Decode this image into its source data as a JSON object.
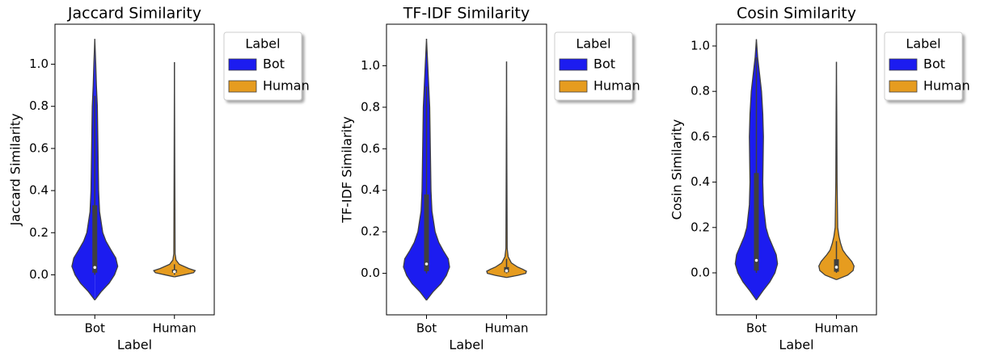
{
  "chart_data": [
    {
      "type": "violin",
      "title": "Jaccard Similarity",
      "x_label": "Label",
      "y_label": "Jaccard Similarity",
      "legend_title": "Label",
      "categories": [
        "Bot",
        "Human"
      ],
      "ylim": [
        -0.19,
        1.19
      ],
      "yticks": [
        {
          "value": 0,
          "label": "0.0"
        },
        0.2,
        0.4,
        0.6,
        0.8,
        {
          "value": 1,
          "label": "1.0"
        }
      ],
      "series": [
        {
          "name": "Bot",
          "color": "#1c1cf0",
          "kde_y": [
            -0.12,
            -0.08,
            -0.04,
            0,
            0.04,
            0.08,
            0.12,
            0.16,
            0.2,
            0.3,
            0.4,
            0.5,
            0.6,
            0.7,
            0.8,
            0.9,
            1.0,
            1.12
          ],
          "kde_width": [
            0,
            0.2,
            0.45,
            0.62,
            0.72,
            0.66,
            0.5,
            0.35,
            0.25,
            0.15,
            0.12,
            0.11,
            0.1,
            0.09,
            0.08,
            0.05,
            0.03,
            0
          ],
          "stats": {
            "whisker_low": 0,
            "q1": 0.01,
            "median": 0.035,
            "q3": 0.33,
            "whisker_high": 0.85
          }
        },
        {
          "name": "Human",
          "color": "#e69c1f",
          "kde_y": [
            -0.01,
            0,
            0.01,
            0.02,
            0.03,
            0.05,
            0.07,
            0.1,
            0.5,
            1.01
          ],
          "kde_width": [
            0,
            0.3,
            0.6,
            0.65,
            0.45,
            0.15,
            0.05,
            0.02,
            0.01,
            0
          ],
          "stats": {
            "whisker_low": 0,
            "q1": 0.01,
            "median": 0.015,
            "q3": 0.025,
            "whisker_high": 0.05
          }
        }
      ]
    },
    {
      "type": "violin",
      "title": "TF-IDF Similarity",
      "x_label": "Label",
      "y_label": "TF-IDF Similarity",
      "legend_title": "Label",
      "categories": [
        "Bot",
        "Human"
      ],
      "ylim": [
        -0.2,
        1.2
      ],
      "yticks": [
        {
          "value": 0,
          "label": "0.0"
        },
        0.2,
        0.4,
        0.6,
        0.8,
        {
          "value": 1,
          "label": "1.0"
        }
      ],
      "series": [
        {
          "name": "Bot",
          "color": "#1c1cf0",
          "kde_y": [
            -0.13,
            -0.09,
            -0.05,
            -0.01,
            0.03,
            0.07,
            0.11,
            0.15,
            0.2,
            0.3,
            0.4,
            0.5,
            0.6,
            0.7,
            0.8,
            0.9,
            1.0,
            1.13
          ],
          "kde_width": [
            0,
            0.2,
            0.45,
            0.62,
            0.72,
            0.68,
            0.52,
            0.38,
            0.27,
            0.17,
            0.14,
            0.13,
            0.12,
            0.11,
            0.1,
            0.07,
            0.04,
            0
          ],
          "stats": {
            "whisker_low": 0,
            "q1": 0.01,
            "median": 0.045,
            "q3": 0.38,
            "whisker_high": 0.9
          }
        },
        {
          "name": "Human",
          "color": "#e69c1f",
          "kde_y": [
            -0.02,
            -0.01,
            0,
            0.01,
            0.02,
            0.03,
            0.05,
            0.08,
            0.12,
            0.5,
            1.02
          ],
          "kde_width": [
            0,
            0.35,
            0.6,
            0.62,
            0.5,
            0.35,
            0.15,
            0.05,
            0.02,
            0.01,
            0
          ],
          "stats": {
            "whisker_low": 0,
            "q1": 0.005,
            "median": 0.012,
            "q3": 0.03,
            "whisker_high": 0.07
          }
        }
      ]
    },
    {
      "type": "violin",
      "title": "Cosin Similarity",
      "x_label": "Label",
      "y_label": "Cosin Similarity",
      "legend_title": "Label",
      "categories": [
        "Bot",
        "Human"
      ],
      "ylim": [
        -0.185,
        1.096
      ],
      "yticks": [
        {
          "value": 0,
          "label": "0.0"
        },
        0.2,
        0.4,
        0.6,
        0.8,
        {
          "value": 1,
          "label": "1.0"
        }
      ],
      "series": [
        {
          "name": "Bot",
          "color": "#1c1cf0",
          "kde_y": [
            -0.12,
            -0.08,
            -0.04,
            0,
            0.04,
            0.08,
            0.12,
            0.16,
            0.2,
            0.3,
            0.4,
            0.5,
            0.6,
            0.7,
            0.8,
            0.9,
            0.95,
            1.03
          ],
          "kde_width": [
            0,
            0.2,
            0.42,
            0.58,
            0.66,
            0.62,
            0.5,
            0.38,
            0.3,
            0.22,
            0.2,
            0.21,
            0.22,
            0.2,
            0.16,
            0.08,
            0.04,
            0
          ],
          "stats": {
            "whisker_low": 0,
            "q1": 0.01,
            "median": 0.055,
            "q3": 0.44,
            "whisker_high": 0.95
          }
        },
        {
          "name": "Human",
          "color": "#e69c1f",
          "kde_y": [
            -0.03,
            -0.01,
            0.01,
            0.03,
            0.05,
            0.08,
            0.1,
            0.13,
            0.16,
            0.2,
            0.4,
            0.7,
            0.93
          ],
          "kde_width": [
            0,
            0.35,
            0.52,
            0.55,
            0.48,
            0.3,
            0.2,
            0.13,
            0.08,
            0.04,
            0.02,
            0.01,
            0
          ],
          "stats": {
            "whisker_low": 0,
            "q1": 0.005,
            "median": 0.025,
            "q3": 0.06,
            "whisker_high": 0.14
          }
        }
      ]
    }
  ]
}
